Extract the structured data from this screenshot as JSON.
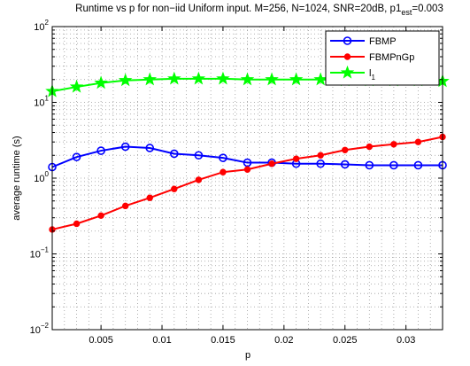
{
  "chart_data": {
    "type": "line",
    "title": "Runtime vs p for non−iid Uniform input. M=256, N=1024, SNR=20dB, p1",
    "title_sub": "est",
    "title_tail": "=0.003",
    "xlabel": "p",
    "ylabel": "average runtime (s)",
    "xlim": [
      0.001,
      0.033
    ],
    "ylim": [
      0.01,
      100
    ],
    "yscale": "log",
    "grid": true,
    "legend_position": "top-right",
    "x_ticks": [
      0.005,
      0.01,
      0.015,
      0.02,
      0.025,
      0.03
    ],
    "x_tick_labels": [
      "0.005",
      "0.01",
      "0.015",
      "0.02",
      "0.025",
      "0.03"
    ],
    "y_ticks": [
      0.01,
      0.1,
      1,
      10,
      100
    ],
    "y_tick_labels": [
      {
        "base": "10",
        "exp": "−2"
      },
      {
        "base": "10",
        "exp": "−1"
      },
      {
        "base": "10",
        "exp": "0"
      },
      {
        "base": "10",
        "exp": "1"
      },
      {
        "base": "10",
        "exp": "2"
      }
    ],
    "x": [
      0.001,
      0.003,
      0.005,
      0.007,
      0.009,
      0.011,
      0.013,
      0.015,
      0.017,
      0.019,
      0.021,
      0.023,
      0.025,
      0.027,
      0.029,
      0.031,
      0.033
    ],
    "series": [
      {
        "name": "FBMP",
        "color": "#0000ff",
        "marker": "circle",
        "values": [
          1.4,
          1.9,
          2.3,
          2.6,
          2.5,
          2.1,
          2.0,
          1.85,
          1.6,
          1.6,
          1.55,
          1.55,
          1.52,
          1.48,
          1.48,
          1.48,
          1.48
        ]
      },
      {
        "name": "FBMPnGp",
        "color": "#ff0000",
        "marker": "dot",
        "values": [
          0.21,
          0.25,
          0.32,
          0.43,
          0.55,
          0.72,
          0.95,
          1.2,
          1.3,
          1.55,
          1.8,
          2.0,
          2.35,
          2.6,
          2.8,
          3.0,
          3.5
        ]
      },
      {
        "name": "l",
        "name_sub": "1",
        "color": "#00ff00",
        "marker": "star",
        "values": [
          14,
          16,
          18,
          19.5,
          20,
          20.5,
          20.5,
          20.5,
          20,
          20,
          20,
          20,
          19.5,
          19.5,
          19.5,
          19.5,
          19
        ]
      }
    ]
  }
}
